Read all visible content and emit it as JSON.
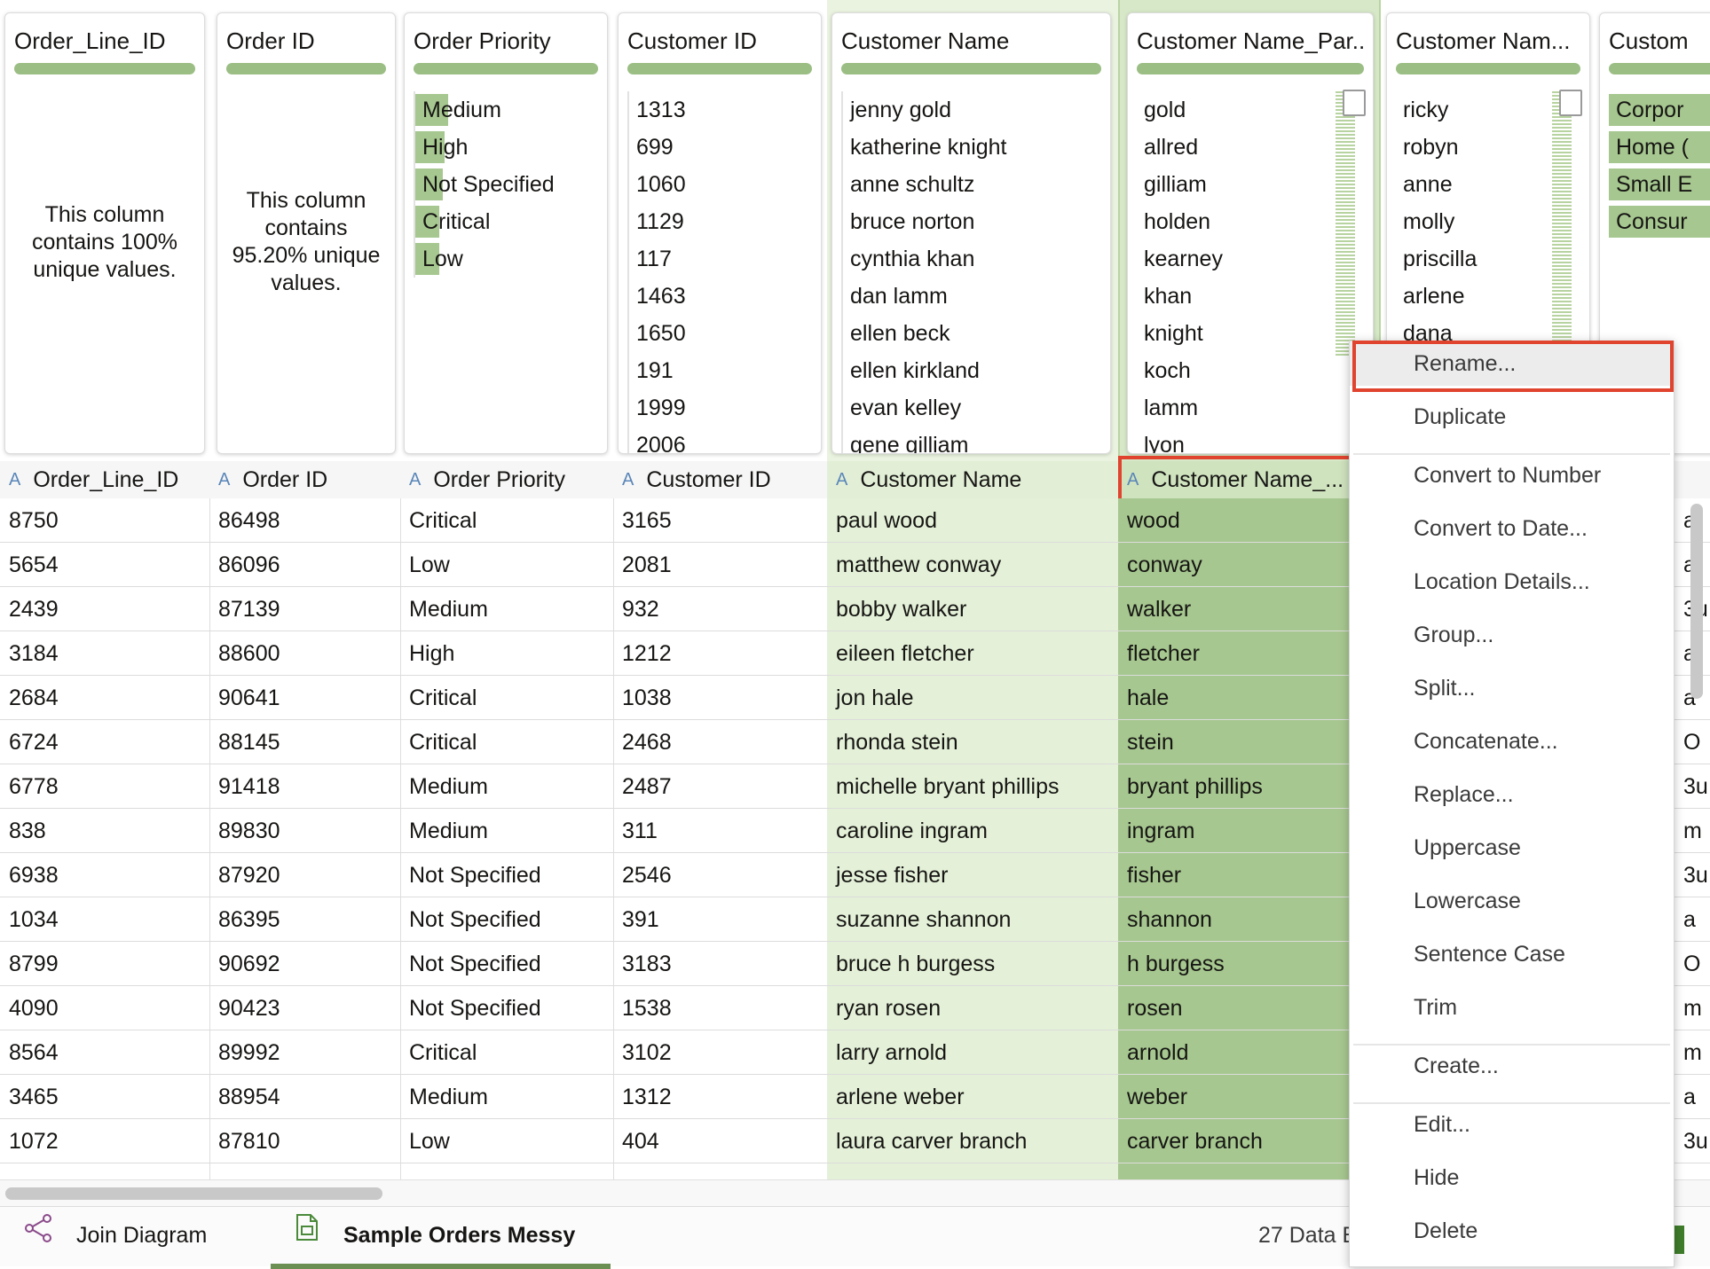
{
  "profiles": [
    {
      "title": "Order_Line_ID",
      "message": "This column contains 100% unique values."
    },
    {
      "title": "Order ID",
      "message": "This column contains 95.20% unique values."
    },
    {
      "title": "Order Priority",
      "items": [
        {
          "label": "Medium",
          "share": 0.18
        },
        {
          "label": "High",
          "share": 0.16
        },
        {
          "label": "Not Specified",
          "share": 0.15
        },
        {
          "label": "Critical",
          "share": 0.13
        },
        {
          "label": "Low",
          "share": 0.13
        }
      ]
    },
    {
      "title": "Customer ID",
      "items": [
        {
          "label": "1313"
        },
        {
          "label": "699"
        },
        {
          "label": "1060"
        },
        {
          "label": "1129"
        },
        {
          "label": "117"
        },
        {
          "label": "1463"
        },
        {
          "label": "1650"
        },
        {
          "label": "191"
        },
        {
          "label": "1999"
        },
        {
          "label": "2006"
        }
      ]
    },
    {
      "title": "Customer Name",
      "items": [
        {
          "label": "jenny gold"
        },
        {
          "label": "katherine knight"
        },
        {
          "label": "anne schultz"
        },
        {
          "label": "bruce norton"
        },
        {
          "label": "cynthia khan"
        },
        {
          "label": "dan lamm"
        },
        {
          "label": "ellen beck"
        },
        {
          "label": "ellen kirkland"
        },
        {
          "label": "evan kelley"
        },
        {
          "label": "gene gilliam"
        }
      ]
    },
    {
      "title": "Customer Name_Par...",
      "items": [
        {
          "label": "gold"
        },
        {
          "label": "allred"
        },
        {
          "label": "gilliam"
        },
        {
          "label": "holden"
        },
        {
          "label": "kearney"
        },
        {
          "label": "khan"
        },
        {
          "label": "knight"
        },
        {
          "label": "koch"
        },
        {
          "label": "lamm"
        },
        {
          "label": "lyon"
        }
      ]
    },
    {
      "title": "Customer Nam...",
      "items": [
        {
          "label": "ricky"
        },
        {
          "label": "robyn"
        },
        {
          "label": "anne"
        },
        {
          "label": "molly"
        },
        {
          "label": "priscilla"
        },
        {
          "label": "arlene"
        },
        {
          "label": "dana"
        }
      ]
    },
    {
      "title": "Custom",
      "items": [
        {
          "label": "Corpor",
          "share": 0.9
        },
        {
          "label": "Home (",
          "share": 0.9
        },
        {
          "label": "Small E",
          "share": 0.9
        },
        {
          "label": "Consur",
          "share": 0.9
        }
      ]
    }
  ],
  "columns": [
    "Order_Line_ID",
    "Order ID",
    "Order Priority",
    "Customer ID",
    "Customer Name",
    "Customer Name_..."
  ],
  "column_type_icon": "A",
  "rows": [
    [
      "8750",
      "86498",
      "Critical",
      "3165",
      "paul wood",
      "wood"
    ],
    [
      "5654",
      "86096",
      "Low",
      "2081",
      "matthew conway",
      "conway"
    ],
    [
      "2439",
      "87139",
      "Medium",
      "932",
      "bobby walker",
      "walker"
    ],
    [
      "3184",
      "88600",
      "High",
      "1212",
      "eileen fletcher",
      "fletcher"
    ],
    [
      "2684",
      "90641",
      "Critical",
      "1038",
      "jon hale",
      "hale"
    ],
    [
      "6724",
      "88145",
      "Critical",
      "2468",
      "rhonda stein",
      "stein"
    ],
    [
      "6778",
      "91418",
      "Medium",
      "2487",
      "michelle bryant phillips",
      "bryant phillips"
    ],
    [
      "838",
      "89830",
      "Medium",
      "311",
      "caroline ingram",
      "ingram"
    ],
    [
      "6938",
      "87920",
      "Not Specified",
      "2546",
      "jesse fisher",
      "fisher"
    ],
    [
      "1034",
      "86395",
      "Not Specified",
      "391",
      "suzanne shannon",
      "shannon"
    ],
    [
      "8799",
      "90692",
      "Not Specified",
      "3183",
      "bruce h burgess",
      "h burgess"
    ],
    [
      "4090",
      "90423",
      "Not Specified",
      "1538",
      "ryan rosen",
      "rosen"
    ],
    [
      "8564",
      "89992",
      "Critical",
      "3102",
      "larry arnold",
      "arnold"
    ],
    [
      "3465",
      "88954",
      "Medium",
      "1312",
      "arlene weber",
      "weber"
    ],
    [
      "1072",
      "87810",
      "Low",
      "404",
      "laura carver branch",
      "carver branch"
    ]
  ],
  "right_edge_hint": [
    "a",
    "a",
    "3u",
    "a",
    "a",
    "O",
    "3u",
    "m",
    "3u",
    "a",
    "O",
    "m",
    "m",
    "a",
    "3u"
  ],
  "context_menu": {
    "items": [
      "Rename...",
      "Duplicate",
      "Convert to Number",
      "Convert to Date...",
      "Location Details...",
      "Group...",
      "Split...",
      "Concatenate...",
      "Replace...",
      "Uppercase",
      "Lowercase",
      "Sentence Case",
      "Trim",
      "Create...",
      "Edit...",
      "Hide",
      "Delete"
    ]
  },
  "tabs": [
    {
      "label": "Join Diagram",
      "icon": "join-diagram-icon"
    },
    {
      "label": "Sample Orders Messy",
      "icon": "dataset-icon",
      "active": true
    }
  ],
  "status": "27 Data E",
  "colors": {
    "accent_green": "#9bbe84",
    "selected_dark": "#a6c78f",
    "selected_light": "#e4f1d8",
    "highlight_red": "#e0432e",
    "type_icon_blue": "#5a86b8"
  }
}
